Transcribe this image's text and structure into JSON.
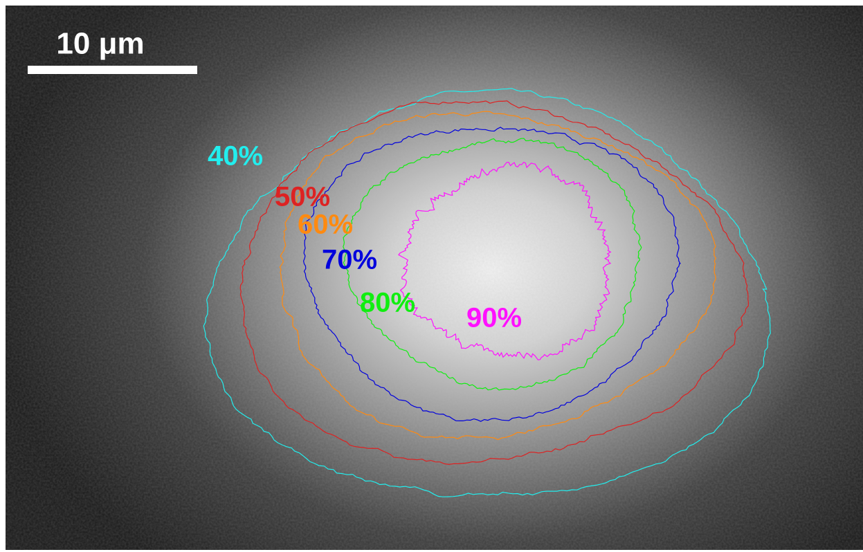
{
  "scale_bar": {
    "label": "10 μm"
  },
  "contours": [
    {
      "label": "40%",
      "color": "#22eeee"
    },
    {
      "label": "50%",
      "color": "#dd2222"
    },
    {
      "label": "60%",
      "color": "#ff8a10"
    },
    {
      "label": "70%",
      "color": "#0000dd"
    },
    {
      "label": "80%",
      "color": "#10ee10"
    },
    {
      "label": "90%",
      "color": "#ff10ff"
    }
  ]
}
